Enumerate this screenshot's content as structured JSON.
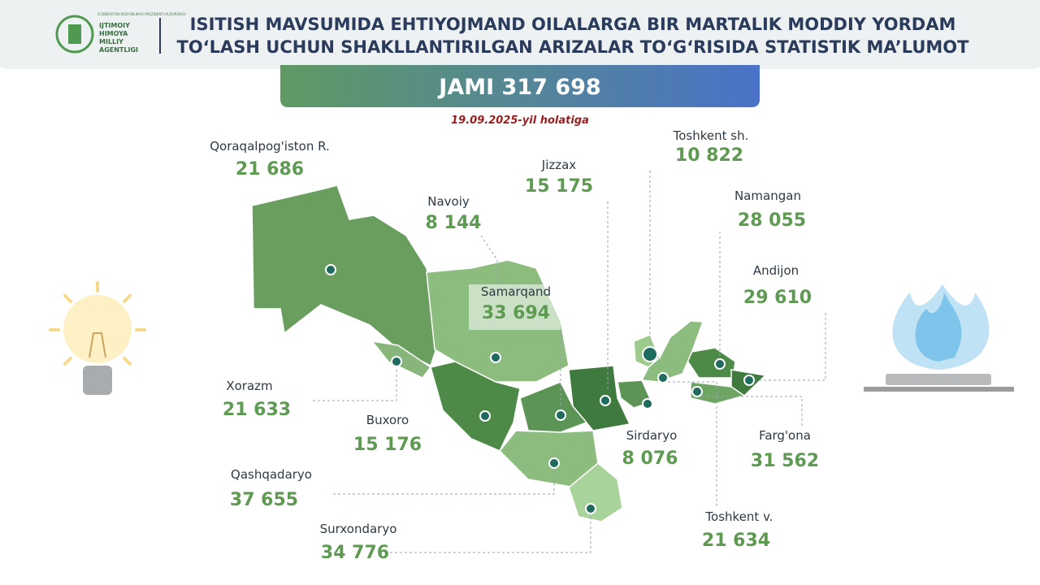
{
  "header": {
    "logo_text": [
      "O'ZBEKISTON RESPUBLIKASI PREZIDENTI HUZURIDAGI",
      "IJTIMOIY",
      "HIMOYA",
      "MILLIY",
      "AGENTLIGI"
    ],
    "title": [
      "ISITISH MAVSUMIDA  EHTIYOJMAND OILALARGA BIR MARTALIK MODDIY YORDAM",
      "TO‘LASH UCHUN SHAKLLANTIRILGAN ARIZALAR TO‘G‘RISIDA STATISTIK MA’LUMOT"
    ]
  },
  "total": "JAMI 317 698",
  "date": "19.09.2025-yil holatiga",
  "regions": [
    {
      "name": "Qoraqalpog'iston R.",
      "value": "21 686"
    },
    {
      "name": "Navoiy",
      "value": "8 144"
    },
    {
      "name": "Jizzax",
      "value": "15 175"
    },
    {
      "name": "Toshkent sh.",
      "value": "10 822"
    },
    {
      "name": "Namangan",
      "value": "28 055"
    },
    {
      "name": "Andijon",
      "value": "29 610"
    },
    {
      "name": "Samarqand",
      "value": "33 694"
    },
    {
      "name": "Xorazm",
      "value": "21 633"
    },
    {
      "name": "Buxoro",
      "value": "15 176"
    },
    {
      "name": "Qashqadaryo",
      "value": "37 655"
    },
    {
      "name": "Surxondaryo",
      "value": "34 776"
    },
    {
      "name": "Sirdaryo",
      "value": "8 076"
    },
    {
      "name": "Farg'ona",
      "value": "31 562"
    },
    {
      "name": "Toshkent v.",
      "value": "21 634"
    }
  ]
}
